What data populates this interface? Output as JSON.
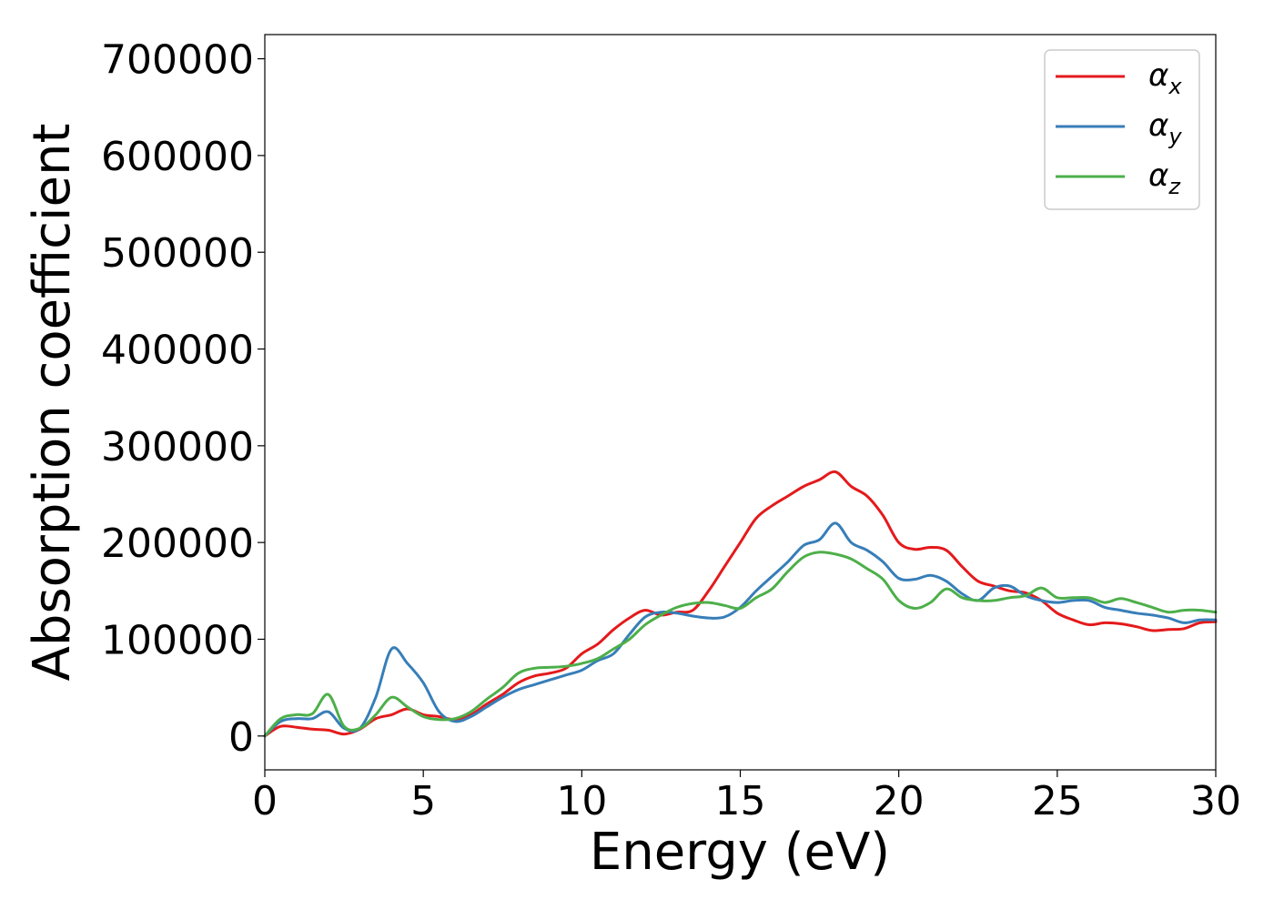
{
  "chart_data": {
    "type": "line",
    "title": "",
    "xlabel": "Energy (eV)",
    "ylabel": "Absorption coefficient",
    "xlim": [
      0,
      30
    ],
    "ylim": [
      -35000,
      725000
    ],
    "xticks": [
      0,
      5,
      10,
      15,
      20,
      25,
      30
    ],
    "yticks": [
      0,
      100000,
      200000,
      300000,
      400000,
      500000,
      600000,
      700000
    ],
    "grid": false,
    "legend_position": "top-right",
    "series": [
      {
        "name": "αx",
        "symbol": "α",
        "subscript": "x",
        "color": "#e41a1c",
        "points": [
          [
            0,
            0
          ],
          [
            0.5,
            10000
          ],
          [
            1.0,
            9000
          ],
          [
            1.5,
            7000
          ],
          [
            2.0,
            6000
          ],
          [
            2.5,
            2000
          ],
          [
            3.0,
            7000
          ],
          [
            3.5,
            18000
          ],
          [
            4.0,
            22000
          ],
          [
            4.5,
            28000
          ],
          [
            5.0,
            22000
          ],
          [
            5.5,
            20000
          ],
          [
            6.0,
            17000
          ],
          [
            6.5,
            22000
          ],
          [
            7.0,
            33000
          ],
          [
            7.5,
            43000
          ],
          [
            8.0,
            55000
          ],
          [
            8.5,
            62000
          ],
          [
            9.0,
            65000
          ],
          [
            9.5,
            70000
          ],
          [
            10.0,
            85000
          ],
          [
            10.5,
            95000
          ],
          [
            11.0,
            110000
          ],
          [
            11.5,
            122000
          ],
          [
            12.0,
            130000
          ],
          [
            12.5,
            125000
          ],
          [
            13.0,
            128000
          ],
          [
            13.5,
            130000
          ],
          [
            14.0,
            150000
          ],
          [
            14.5,
            175000
          ],
          [
            15.0,
            200000
          ],
          [
            15.5,
            225000
          ],
          [
            16.0,
            238000
          ],
          [
            16.5,
            248000
          ],
          [
            17.0,
            258000
          ],
          [
            17.5,
            265000
          ],
          [
            18.0,
            273000
          ],
          [
            18.5,
            258000
          ],
          [
            19.0,
            248000
          ],
          [
            19.5,
            228000
          ],
          [
            20.0,
            200000
          ],
          [
            20.5,
            193000
          ],
          [
            21.0,
            195000
          ],
          [
            21.5,
            192000
          ],
          [
            22.0,
            175000
          ],
          [
            22.5,
            160000
          ],
          [
            23.0,
            155000
          ],
          [
            23.5,
            150000
          ],
          [
            24.0,
            148000
          ],
          [
            24.5,
            140000
          ],
          [
            25.0,
            127000
          ],
          [
            25.5,
            120000
          ],
          [
            26.0,
            115000
          ],
          [
            26.5,
            117000
          ],
          [
            27.0,
            116000
          ],
          [
            27.5,
            113000
          ],
          [
            28.0,
            109000
          ],
          [
            28.5,
            110000
          ],
          [
            29.0,
            111000
          ],
          [
            29.5,
            117000
          ],
          [
            30.0,
            118000
          ]
        ]
      },
      {
        "name": "αy",
        "symbol": "α",
        "subscript": "y",
        "color": "#377eb8",
        "points": [
          [
            0,
            0
          ],
          [
            0.5,
            15000
          ],
          [
            1.0,
            18000
          ],
          [
            1.5,
            18000
          ],
          [
            2.0,
            25000
          ],
          [
            2.5,
            8000
          ],
          [
            3.0,
            8000
          ],
          [
            3.5,
            40000
          ],
          [
            4.0,
            90000
          ],
          [
            4.5,
            75000
          ],
          [
            5.0,
            55000
          ],
          [
            5.5,
            25000
          ],
          [
            6.0,
            15000
          ],
          [
            6.5,
            20000
          ],
          [
            7.0,
            30000
          ],
          [
            7.5,
            40000
          ],
          [
            8.0,
            48000
          ],
          [
            8.5,
            53000
          ],
          [
            9.0,
            58000
          ],
          [
            9.5,
            63000
          ],
          [
            10.0,
            68000
          ],
          [
            10.5,
            78000
          ],
          [
            11.0,
            85000
          ],
          [
            11.5,
            105000
          ],
          [
            12.0,
            123000
          ],
          [
            12.5,
            128000
          ],
          [
            13.0,
            127000
          ],
          [
            13.5,
            124000
          ],
          [
            14.0,
            122000
          ],
          [
            14.5,
            123000
          ],
          [
            15.0,
            133000
          ],
          [
            15.5,
            150000
          ],
          [
            16.0,
            165000
          ],
          [
            16.5,
            180000
          ],
          [
            17.0,
            197000
          ],
          [
            17.5,
            203000
          ],
          [
            18.0,
            220000
          ],
          [
            18.5,
            200000
          ],
          [
            19.0,
            192000
          ],
          [
            19.5,
            180000
          ],
          [
            20.0,
            163000
          ],
          [
            20.5,
            162000
          ],
          [
            21.0,
            166000
          ],
          [
            21.5,
            160000
          ],
          [
            22.0,
            147000
          ],
          [
            22.5,
            140000
          ],
          [
            23.0,
            153000
          ],
          [
            23.5,
            155000
          ],
          [
            24.0,
            145000
          ],
          [
            24.5,
            140000
          ],
          [
            25.0,
            138000
          ],
          [
            25.5,
            140000
          ],
          [
            26.0,
            140000
          ],
          [
            26.5,
            133000
          ],
          [
            27.0,
            130000
          ],
          [
            27.5,
            127000
          ],
          [
            28.0,
            125000
          ],
          [
            28.5,
            122000
          ],
          [
            29.0,
            117000
          ],
          [
            29.5,
            120000
          ],
          [
            30.0,
            120000
          ]
        ]
      },
      {
        "name": "αz",
        "symbol": "α",
        "subscript": "z",
        "color": "#4daf4a",
        "points": [
          [
            0,
            0
          ],
          [
            0.5,
            18000
          ],
          [
            1.0,
            22000
          ],
          [
            1.5,
            23000
          ],
          [
            2.0,
            43000
          ],
          [
            2.5,
            10000
          ],
          [
            3.0,
            8000
          ],
          [
            3.5,
            22000
          ],
          [
            4.0,
            40000
          ],
          [
            4.5,
            30000
          ],
          [
            5.0,
            20000
          ],
          [
            5.5,
            17000
          ],
          [
            6.0,
            18000
          ],
          [
            6.5,
            25000
          ],
          [
            7.0,
            38000
          ],
          [
            7.5,
            50000
          ],
          [
            8.0,
            65000
          ],
          [
            8.5,
            70000
          ],
          [
            9.0,
            71000
          ],
          [
            9.5,
            72000
          ],
          [
            10.0,
            75000
          ],
          [
            10.5,
            80000
          ],
          [
            11.0,
            90000
          ],
          [
            11.5,
            100000
          ],
          [
            12.0,
            115000
          ],
          [
            12.5,
            125000
          ],
          [
            13.0,
            133000
          ],
          [
            13.5,
            137000
          ],
          [
            14.0,
            138000
          ],
          [
            14.5,
            135000
          ],
          [
            15.0,
            132000
          ],
          [
            15.5,
            143000
          ],
          [
            16.0,
            152000
          ],
          [
            16.5,
            170000
          ],
          [
            17.0,
            185000
          ],
          [
            17.5,
            190000
          ],
          [
            18.0,
            188000
          ],
          [
            18.5,
            183000
          ],
          [
            19.0,
            173000
          ],
          [
            19.5,
            162000
          ],
          [
            20.0,
            140000
          ],
          [
            20.5,
            132000
          ],
          [
            21.0,
            138000
          ],
          [
            21.5,
            152000
          ],
          [
            22.0,
            143000
          ],
          [
            22.5,
            140000
          ],
          [
            23.0,
            140000
          ],
          [
            23.5,
            143000
          ],
          [
            24.0,
            145000
          ],
          [
            24.5,
            153000
          ],
          [
            25.0,
            143000
          ],
          [
            25.5,
            143000
          ],
          [
            26.0,
            143000
          ],
          [
            26.5,
            138000
          ],
          [
            27.0,
            142000
          ],
          [
            27.5,
            138000
          ],
          [
            28.0,
            133000
          ],
          [
            28.5,
            128000
          ],
          [
            29.0,
            130000
          ],
          [
            29.5,
            130000
          ],
          [
            30.0,
            128000
          ]
        ]
      }
    ]
  }
}
